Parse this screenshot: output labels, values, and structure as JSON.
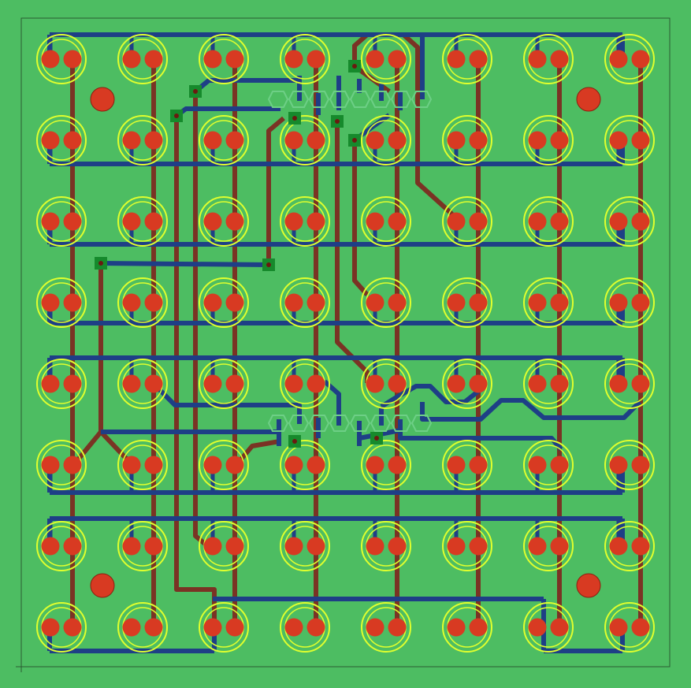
{
  "colors": {
    "board": "#4dbd62",
    "outline": "#2a5a32",
    "top_trace": "#1e3f86",
    "bottom_trace": "#7a3324",
    "pad": "#d83a22",
    "silkscreen": "#e0ff2e",
    "via_ring": "#168a2c",
    "ic_outline": "#6dcf86"
  },
  "grid": {
    "columns": 8,
    "rows": 8,
    "element": "bicolor-led",
    "pads_per_led": 2
  },
  "mounting_holes": 4,
  "chips": [
    {
      "name": "upper-ic",
      "pins_per_side": 8
    },
    {
      "name": "lower-ic",
      "pins_per_side": 8
    }
  ],
  "vias": 10
}
